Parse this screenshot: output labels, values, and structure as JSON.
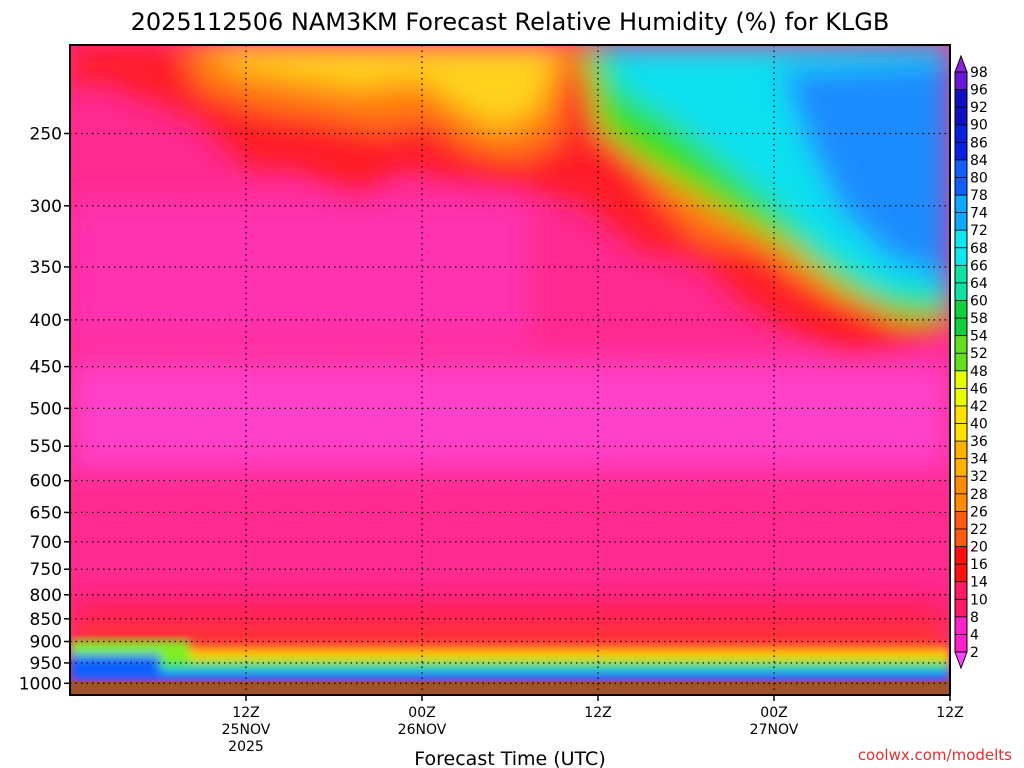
{
  "chart_data": {
    "type": "heatmap",
    "title": "2025112506 NAM3KM Forecast Relative Humidity (%) for KLGB",
    "xlabel": "Forecast Time (UTC)",
    "ylabel": "",
    "credit": "coolwx.com/modelts",
    "y_axis": {
      "unit": "hPa",
      "scale": "log",
      "inverted": true,
      "range": [
        200,
        1030
      ],
      "ticks": [
        250,
        300,
        350,
        400,
        450,
        500,
        550,
        600,
        650,
        700,
        750,
        800,
        850,
        900,
        950,
        1000
      ]
    },
    "x_axis": {
      "range_hours": [
        -6,
        54
      ],
      "ticks": [
        {
          "hour": 6,
          "line1": "12Z",
          "line2": "25NOV",
          "line3": "2025"
        },
        {
          "hour": 18,
          "line1": "00Z",
          "line2": "26NOV",
          "line3": ""
        },
        {
          "hour": 30,
          "line1": "12Z",
          "line2": "",
          "line3": ""
        },
        {
          "hour": 42,
          "line1": "00Z",
          "line2": "27NOV",
          "line3": ""
        },
        {
          "hour": 54,
          "line1": "12Z",
          "line2": "",
          "line3": ""
        }
      ]
    },
    "grid": true,
    "colorbar": {
      "placement": "right",
      "levels": [
        2,
        4,
        8,
        10,
        14,
        16,
        20,
        22,
        26,
        28,
        32,
        34,
        36,
        40,
        42,
        46,
        48,
        52,
        54,
        58,
        60,
        64,
        66,
        68,
        72,
        74,
        78,
        80,
        84,
        86,
        90,
        92,
        96,
        98
      ]
    },
    "surface_color": "#a0522d",
    "series_description": "Mostly very dry (magenta/pink, under 10%) through the column; moist (green/blue) near the 1000 hPa surface; upper levels humid (cyan/blue, 60–80%) in the later forecast hours"
  }
}
